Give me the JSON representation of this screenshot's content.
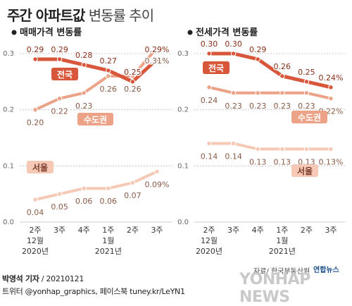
{
  "title": {
    "main": "주간 아파트값",
    "sub": "변동률 추이"
  },
  "colors": {
    "national": "#d8573b",
    "capital": "#eba286",
    "seoul": "#f5c9b5",
    "grid": "#bdbdbd",
    "label_text": "#7a3a2a",
    "value_text": "#b04a30"
  },
  "chart_data": [
    {
      "type": "line",
      "title": "매매가격 변동률",
      "categories": [
        "2주",
        "3주",
        "4주",
        "1주",
        "2주",
        "3주"
      ],
      "category_sub": [
        "12월",
        "",
        "",
        "1월",
        "",
        ""
      ],
      "category_year": [
        "2020년",
        "",
        "",
        "2021년",
        "",
        ""
      ],
      "ylim": [
        0,
        0.3
      ],
      "yticks": [
        "0.3",
        "0.2",
        "0.1",
        "0.0"
      ],
      "grid": true,
      "series": [
        {
          "name": "전국",
          "values": [
            0.29,
            0.29,
            0.28,
            0.27,
            0.25,
            0.29
          ],
          "labels": [
            "0.29",
            "0.29",
            "0.28",
            "0.27",
            "0.25",
            "0.29%"
          ]
        },
        {
          "name": "수도권",
          "values": [
            0.2,
            0.22,
            0.23,
            0.26,
            0.26,
            0.31
          ],
          "labels": [
            "0.20",
            "0.22",
            "0.23",
            "0.26",
            "0.26",
            "0.31%"
          ]
        },
        {
          "name": "서울",
          "values": [
            0.04,
            0.05,
            0.06,
            0.06,
            0.07,
            0.09
          ],
          "labels": [
            "0.04",
            "0.05",
            "0.06",
            "0.06",
            "0.07",
            "0.09%"
          ]
        }
      ]
    },
    {
      "type": "line",
      "title": "전세가격 변동률",
      "categories": [
        "2주",
        "3주",
        "4주",
        "1주",
        "2주",
        "3주"
      ],
      "category_sub": [
        "12월",
        "",
        "",
        "1월",
        "",
        ""
      ],
      "category_year": [
        "2020년",
        "",
        "",
        "2021년",
        "",
        ""
      ],
      "ylim": [
        0,
        0.3
      ],
      "yticks": [
        "0.3",
        "0.2",
        "0.1",
        "0.0"
      ],
      "grid": true,
      "series": [
        {
          "name": "전국",
          "values": [
            0.3,
            0.3,
            0.29,
            0.26,
            0.25,
            0.24
          ],
          "labels": [
            "0.30",
            "0.30",
            "0.29",
            "0.26",
            "0.25",
            "0.24%"
          ]
        },
        {
          "name": "수도권",
          "values": [
            0.24,
            0.23,
            0.23,
            0.23,
            0.23,
            0.22
          ],
          "labels": [
            "0.24",
            "0.23",
            "0.23",
            "0.23",
            "0.23",
            "0.22%"
          ]
        },
        {
          "name": "서울",
          "values": [
            0.14,
            0.14,
            0.13,
            0.13,
            0.13,
            0.13
          ],
          "labels": [
            "0.14",
            "0.14",
            "0.13",
            "0.13",
            "0.13",
            "0.13%"
          ]
        }
      ]
    }
  ],
  "footer": {
    "reporter": "박영석 기자",
    "date": " / 20210121",
    "social": "트위터 @yonhap_graphics, 페이스북 tuney.kr/LeYN1",
    "source": "자료/ 한국부동산원",
    "brand": "연합뉴스",
    "watermark": "YONHAP NEWS"
  }
}
